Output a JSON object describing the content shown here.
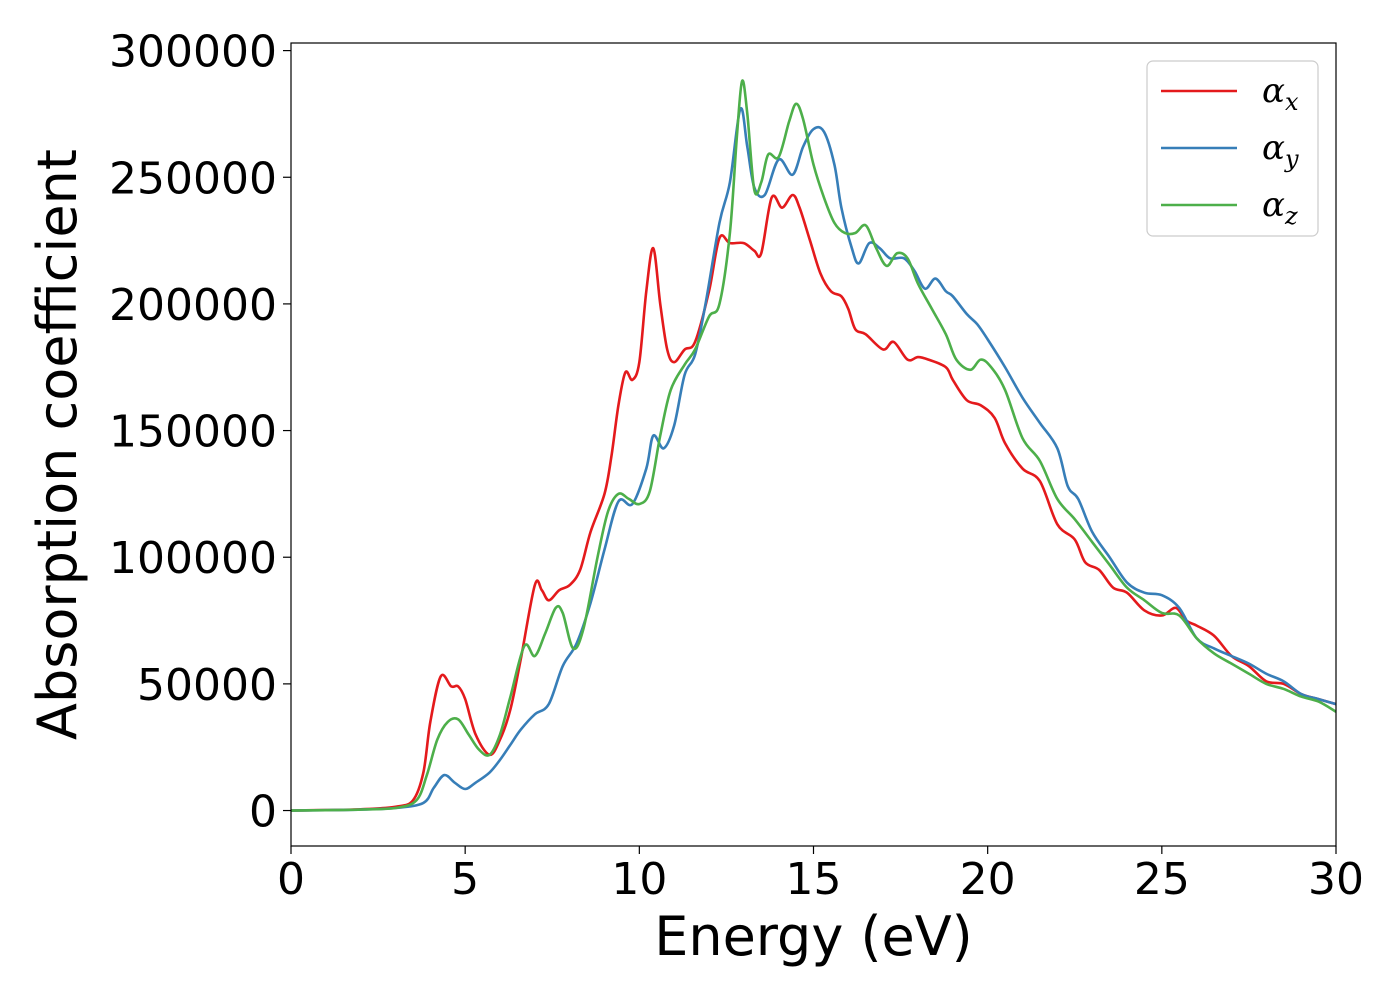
{
  "chart_data": {
    "type": "line",
    "xlabel": "Energy (eV)",
    "ylabel": "Absorption coefficient",
    "xlim": [
      0,
      30
    ],
    "ylim": [
      -14000,
      303000
    ],
    "xticks": [
      0,
      5,
      10,
      15,
      20,
      25,
      30
    ],
    "xtick_labels": [
      "0",
      "5",
      "10",
      "15",
      "20",
      "25",
      "30"
    ],
    "yticks": [
      0,
      50000,
      100000,
      150000,
      200000,
      250000,
      300000
    ],
    "ytick_labels": [
      "0",
      "50000",
      "100000",
      "150000",
      "200000",
      "250000",
      "300000"
    ],
    "grid": false,
    "legend_position": "top-right",
    "series": [
      {
        "name": "αx",
        "name_main": "α",
        "name_sub": "x",
        "color": "#e41a1c",
        "points": [
          [
            0,
            0
          ],
          [
            1,
            200
          ],
          [
            2,
            500
          ],
          [
            3,
            1500
          ],
          [
            3.5,
            4000
          ],
          [
            3.8,
            15000
          ],
          [
            4.0,
            35000
          ],
          [
            4.3,
            53000
          ],
          [
            4.6,
            49000
          ],
          [
            4.8,
            49000
          ],
          [
            5.0,
            44000
          ],
          [
            5.3,
            30000
          ],
          [
            5.7,
            22000
          ],
          [
            6.0,
            28000
          ],
          [
            6.3,
            40000
          ],
          [
            6.6,
            60000
          ],
          [
            7.0,
            89000
          ],
          [
            7.2,
            87000
          ],
          [
            7.4,
            83000
          ],
          [
            7.7,
            87000
          ],
          [
            8.0,
            89000
          ],
          [
            8.3,
            95000
          ],
          [
            8.6,
            110000
          ],
          [
            9.0,
            125000
          ],
          [
            9.2,
            140000
          ],
          [
            9.4,
            160000
          ],
          [
            9.6,
            173000
          ],
          [
            9.8,
            170000
          ],
          [
            10.0,
            177000
          ],
          [
            10.2,
            205000
          ],
          [
            10.4,
            222000
          ],
          [
            10.6,
            200000
          ],
          [
            10.8,
            182000
          ],
          [
            11.0,
            177000
          ],
          [
            11.3,
            182000
          ],
          [
            11.6,
            185000
          ],
          [
            12.0,
            205000
          ],
          [
            12.3,
            226000
          ],
          [
            12.6,
            224000
          ],
          [
            13.0,
            224000
          ],
          [
            13.3,
            221000
          ],
          [
            13.5,
            220000
          ],
          [
            13.8,
            242000
          ],
          [
            14.1,
            238000
          ],
          [
            14.4,
            243000
          ],
          [
            14.6,
            238000
          ],
          [
            14.9,
            225000
          ],
          [
            15.2,
            212000
          ],
          [
            15.5,
            205000
          ],
          [
            15.8,
            203000
          ],
          [
            16.0,
            198000
          ],
          [
            16.2,
            190000
          ],
          [
            16.5,
            188000
          ],
          [
            17.0,
            182000
          ],
          [
            17.3,
            185000
          ],
          [
            17.7,
            178000
          ],
          [
            18.0,
            179000
          ],
          [
            18.3,
            178000
          ],
          [
            18.8,
            175000
          ],
          [
            19.0,
            170000
          ],
          [
            19.4,
            162000
          ],
          [
            19.8,
            160000
          ],
          [
            20.2,
            155000
          ],
          [
            20.5,
            145000
          ],
          [
            21.0,
            135000
          ],
          [
            21.5,
            130000
          ],
          [
            22.0,
            113000
          ],
          [
            22.5,
            107000
          ],
          [
            22.8,
            98000
          ],
          [
            23.2,
            95000
          ],
          [
            23.6,
            88000
          ],
          [
            24.0,
            86000
          ],
          [
            24.5,
            79000
          ],
          [
            25.0,
            77000
          ],
          [
            25.4,
            80000
          ],
          [
            25.7,
            75000
          ],
          [
            26.0,
            73000
          ],
          [
            26.5,
            69000
          ],
          [
            27.0,
            61000
          ],
          [
            27.5,
            57000
          ],
          [
            28.0,
            51000
          ],
          [
            28.5,
            50000
          ],
          [
            29.0,
            46000
          ],
          [
            29.5,
            44000
          ],
          [
            30.0,
            42000
          ]
        ]
      },
      {
        "name": "αy",
        "name_main": "α",
        "name_sub": "y",
        "color": "#377eb8",
        "points": [
          [
            0,
            0
          ],
          [
            1,
            150
          ],
          [
            2,
            400
          ],
          [
            3,
            1000
          ],
          [
            3.8,
            3000
          ],
          [
            4.1,
            9000
          ],
          [
            4.4,
            14000
          ],
          [
            4.7,
            11000
          ],
          [
            5.0,
            8500
          ],
          [
            5.3,
            11000
          ],
          [
            5.7,
            15000
          ],
          [
            6.0,
            20000
          ],
          [
            6.3,
            26000
          ],
          [
            6.6,
            32000
          ],
          [
            7.0,
            38000
          ],
          [
            7.4,
            42000
          ],
          [
            7.8,
            57000
          ],
          [
            8.2,
            66000
          ],
          [
            8.6,
            82000
          ],
          [
            9.0,
            103000
          ],
          [
            9.4,
            122000
          ],
          [
            9.8,
            121000
          ],
          [
            10.2,
            135000
          ],
          [
            10.4,
            148000
          ],
          [
            10.7,
            143000
          ],
          [
            11.0,
            152000
          ],
          [
            11.3,
            172000
          ],
          [
            11.6,
            180000
          ],
          [
            11.9,
            200000
          ],
          [
            12.3,
            232000
          ],
          [
            12.6,
            248000
          ],
          [
            12.9,
            277000
          ],
          [
            13.1,
            262000
          ],
          [
            13.3,
            246000
          ],
          [
            13.6,
            243000
          ],
          [
            14.0,
            257000
          ],
          [
            14.4,
            251000
          ],
          [
            14.7,
            262000
          ],
          [
            15.0,
            269000
          ],
          [
            15.3,
            268000
          ],
          [
            15.6,
            255000
          ],
          [
            15.8,
            238000
          ],
          [
            16.1,
            222000
          ],
          [
            16.3,
            216000
          ],
          [
            16.6,
            224000
          ],
          [
            16.9,
            222000
          ],
          [
            17.2,
            218000
          ],
          [
            17.6,
            218000
          ],
          [
            17.9,
            213000
          ],
          [
            18.2,
            206000
          ],
          [
            18.5,
            210000
          ],
          [
            18.8,
            205000
          ],
          [
            19.0,
            203000
          ],
          [
            19.4,
            196000
          ],
          [
            19.7,
            192000
          ],
          [
            20.0,
            186000
          ],
          [
            20.5,
            175000
          ],
          [
            21.0,
            163000
          ],
          [
            21.5,
            153000
          ],
          [
            22.0,
            143000
          ],
          [
            22.3,
            128000
          ],
          [
            22.6,
            123000
          ],
          [
            23.0,
            110000
          ],
          [
            23.5,
            100000
          ],
          [
            24.0,
            90000
          ],
          [
            24.5,
            86000
          ],
          [
            25.0,
            85000
          ],
          [
            25.5,
            80000
          ],
          [
            26.0,
            68000
          ],
          [
            26.5,
            64000
          ],
          [
            27.0,
            61000
          ],
          [
            27.5,
            58000
          ],
          [
            28.0,
            54000
          ],
          [
            28.5,
            51000
          ],
          [
            29.0,
            46000
          ],
          [
            29.5,
            44000
          ],
          [
            30.0,
            42000
          ]
        ]
      },
      {
        "name": "αz",
        "name_main": "α",
        "name_sub": "z",
        "color": "#4daf4a",
        "points": [
          [
            0,
            0
          ],
          [
            1,
            150
          ],
          [
            2,
            400
          ],
          [
            3,
            1000
          ],
          [
            3.6,
            4000
          ],
          [
            3.9,
            14000
          ],
          [
            4.2,
            28000
          ],
          [
            4.5,
            35000
          ],
          [
            4.8,
            36000
          ],
          [
            5.1,
            30000
          ],
          [
            5.4,
            24000
          ],
          [
            5.7,
            22000
          ],
          [
            6.0,
            30000
          ],
          [
            6.3,
            45000
          ],
          [
            6.7,
            65000
          ],
          [
            7.0,
            61000
          ],
          [
            7.3,
            70000
          ],
          [
            7.6,
            80000
          ],
          [
            7.8,
            78000
          ],
          [
            8.1,
            64000
          ],
          [
            8.4,
            72000
          ],
          [
            8.8,
            100000
          ],
          [
            9.1,
            118000
          ],
          [
            9.4,
            125000
          ],
          [
            9.7,
            123000
          ],
          [
            10.0,
            121000
          ],
          [
            10.3,
            126000
          ],
          [
            10.6,
            148000
          ],
          [
            10.9,
            166000
          ],
          [
            11.3,
            176000
          ],
          [
            11.6,
            182000
          ],
          [
            12.0,
            195000
          ],
          [
            12.3,
            200000
          ],
          [
            12.6,
            228000
          ],
          [
            12.8,
            266000
          ],
          [
            12.95,
            288000
          ],
          [
            13.1,
            275000
          ],
          [
            13.3,
            245000
          ],
          [
            13.5,
            248000
          ],
          [
            13.7,
            259000
          ],
          [
            14.0,
            258000
          ],
          [
            14.3,
            272000
          ],
          [
            14.5,
            279000
          ],
          [
            14.7,
            273000
          ],
          [
            15.0,
            255000
          ],
          [
            15.3,
            242000
          ],
          [
            15.6,
            232000
          ],
          [
            15.9,
            228000
          ],
          [
            16.2,
            228000
          ],
          [
            16.5,
            231000
          ],
          [
            16.8,
            222000
          ],
          [
            17.1,
            215000
          ],
          [
            17.4,
            220000
          ],
          [
            17.7,
            218000
          ],
          [
            18.0,
            208000
          ],
          [
            18.4,
            198000
          ],
          [
            18.8,
            188000
          ],
          [
            19.1,
            178000
          ],
          [
            19.5,
            174000
          ],
          [
            19.8,
            178000
          ],
          [
            20.1,
            175000
          ],
          [
            20.5,
            166000
          ],
          [
            21.0,
            147000
          ],
          [
            21.5,
            138000
          ],
          [
            22.0,
            123000
          ],
          [
            22.5,
            115000
          ],
          [
            23.0,
            106000
          ],
          [
            23.5,
            97000
          ],
          [
            24.0,
            88000
          ],
          [
            24.5,
            83000
          ],
          [
            25.0,
            78000
          ],
          [
            25.5,
            77000
          ],
          [
            26.0,
            68000
          ],
          [
            26.5,
            62000
          ],
          [
            27.0,
            58000
          ],
          [
            27.5,
            54000
          ],
          [
            28.0,
            50000
          ],
          [
            28.5,
            48000
          ],
          [
            29.0,
            45000
          ],
          [
            29.5,
            43000
          ],
          [
            30.0,
            39000
          ]
        ]
      }
    ]
  }
}
